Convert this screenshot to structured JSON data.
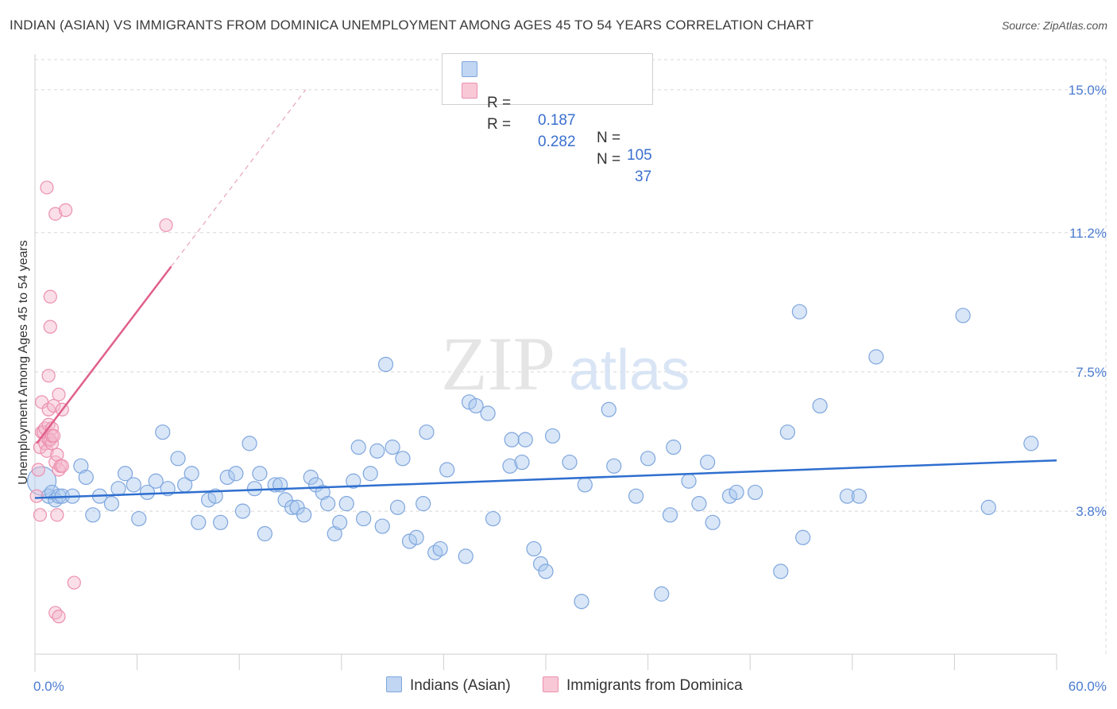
{
  "header": {
    "title": "INDIAN (ASIAN) VS IMMIGRANTS FROM DOMINICA UNEMPLOYMENT AMONG AGES 45 TO 54 YEARS CORRELATION CHART",
    "source": "Source: ZipAtlas.com"
  },
  "legend": {
    "r_label": "R =",
    "n_label": "N =",
    "series1": {
      "r": "0.187",
      "n": "105"
    },
    "series2": {
      "r": "0.282",
      "n": "37"
    }
  },
  "bottom_legend": {
    "series1": "Indians (Asian)",
    "series2": "Immigrants from Dominica"
  },
  "watermark": {
    "zip": "ZIP",
    "atlas": "atlas"
  },
  "colors": {
    "blue_fill": "#a9c7ee",
    "blue_stroke": "#7fa6de",
    "blue_line": "#2f6fcf",
    "pink_fill": "#f5b8cb",
    "pink_stroke": "#ec8fae",
    "pink_line": "#e0608a",
    "axis_text": "#4a7bd0",
    "grid": "#d8d8d8"
  },
  "chart_data": {
    "type": "scatter",
    "title": "INDIAN (ASIAN) VS IMMIGRANTS FROM DOMINICA UNEMPLOYMENT AMONG AGES 45 TO 54 YEARS CORRELATION CHART",
    "xlabel": "",
    "ylabel": "Unemployment Among Ages 45 to 54 years",
    "xlim": [
      0,
      60
    ],
    "ylim": [
      0,
      15.8
    ],
    "x_tick_labels": [
      "0.0%",
      "60.0%"
    ],
    "y_ticks": [
      {
        "value": 3.8,
        "label": "3.8%"
      },
      {
        "value": 7.5,
        "label": "7.5%"
      },
      {
        "value": 11.2,
        "label": "11.2%"
      },
      {
        "value": 15.0,
        "label": "15.0%"
      }
    ],
    "grid": true,
    "series": [
      {
        "name": "Indians (Asian)",
        "r": 0.187,
        "n": 105,
        "trend": {
          "x": [
            0,
            60
          ],
          "y": [
            4.15,
            5.15
          ]
        },
        "points": [
          [
            0.4,
            4.6
          ],
          [
            0.8,
            4.2
          ],
          [
            1.0,
            4.3
          ],
          [
            1.2,
            4.1
          ],
          [
            1.4,
            4.2
          ],
          [
            1.6,
            4.2
          ],
          [
            2.2,
            4.2
          ],
          [
            2.7,
            5.0
          ],
          [
            3.0,
            4.7
          ],
          [
            3.4,
            3.7
          ],
          [
            3.8,
            4.2
          ],
          [
            4.5,
            4.0
          ],
          [
            4.9,
            4.4
          ],
          [
            5.3,
            4.8
          ],
          [
            5.8,
            4.5
          ],
          [
            6.1,
            3.6
          ],
          [
            6.6,
            4.3
          ],
          [
            7.1,
            4.6
          ],
          [
            7.5,
            5.9
          ],
          [
            7.8,
            4.4
          ],
          [
            8.4,
            5.2
          ],
          [
            8.8,
            4.5
          ],
          [
            9.2,
            4.8
          ],
          [
            9.6,
            3.5
          ],
          [
            10.2,
            4.1
          ],
          [
            10.6,
            4.2
          ],
          [
            10.9,
            3.5
          ],
          [
            11.3,
            4.7
          ],
          [
            11.8,
            4.8
          ],
          [
            12.2,
            3.8
          ],
          [
            12.6,
            5.6
          ],
          [
            12.9,
            4.4
          ],
          [
            13.2,
            4.8
          ],
          [
            13.5,
            3.2
          ],
          [
            14.1,
            4.5
          ],
          [
            14.4,
            4.5
          ],
          [
            14.7,
            4.1
          ],
          [
            15.1,
            3.9
          ],
          [
            15.4,
            3.9
          ],
          [
            15.8,
            3.7
          ],
          [
            16.2,
            4.7
          ],
          [
            16.5,
            4.5
          ],
          [
            16.9,
            4.3
          ],
          [
            17.2,
            4.0
          ],
          [
            17.6,
            3.2
          ],
          [
            17.9,
            3.5
          ],
          [
            18.3,
            4.0
          ],
          [
            18.7,
            4.6
          ],
          [
            19.0,
            5.5
          ],
          [
            19.3,
            3.6
          ],
          [
            19.7,
            4.8
          ],
          [
            20.1,
            5.4
          ],
          [
            20.4,
            3.4
          ],
          [
            20.6,
            7.7
          ],
          [
            21.0,
            5.5
          ],
          [
            21.3,
            3.9
          ],
          [
            21.6,
            5.2
          ],
          [
            22.0,
            3.0
          ],
          [
            22.4,
            3.1
          ],
          [
            22.8,
            4.0
          ],
          [
            23.0,
            5.9
          ],
          [
            23.5,
            2.7
          ],
          [
            23.8,
            2.8
          ],
          [
            24.2,
            4.9
          ],
          [
            25.3,
            2.6
          ],
          [
            25.5,
            6.7
          ],
          [
            25.9,
            6.6
          ],
          [
            26.6,
            6.4
          ],
          [
            26.9,
            3.6
          ],
          [
            27.9,
            5.0
          ],
          [
            28.0,
            5.7
          ],
          [
            28.6,
            5.1
          ],
          [
            28.8,
            5.7
          ],
          [
            29.3,
            2.8
          ],
          [
            29.7,
            2.4
          ],
          [
            30.0,
            2.2
          ],
          [
            30.4,
            5.8
          ],
          [
            31.4,
            5.1
          ],
          [
            32.1,
            1.4
          ],
          [
            32.3,
            4.5
          ],
          [
            33.7,
            6.5
          ],
          [
            34.0,
            5.0
          ],
          [
            35.3,
            4.2
          ],
          [
            36.0,
            5.2
          ],
          [
            36.8,
            1.6
          ],
          [
            37.3,
            3.7
          ],
          [
            37.5,
            5.5
          ],
          [
            38.4,
            4.6
          ],
          [
            39.0,
            4.0
          ],
          [
            39.5,
            5.1
          ],
          [
            39.8,
            3.5
          ],
          [
            40.8,
            4.2
          ],
          [
            41.2,
            4.3
          ],
          [
            42.3,
            4.3
          ],
          [
            43.8,
            2.2
          ],
          [
            44.2,
            5.9
          ],
          [
            44.9,
            9.1
          ],
          [
            45.1,
            3.1
          ],
          [
            46.1,
            6.6
          ],
          [
            47.7,
            4.2
          ],
          [
            48.4,
            4.2
          ],
          [
            49.4,
            7.9
          ],
          [
            54.5,
            9.0
          ],
          [
            56.0,
            3.9
          ],
          [
            58.5,
            5.6
          ]
        ]
      },
      {
        "name": "Immigrants from Dominica",
        "r": 0.282,
        "n": 37,
        "trend": {
          "x": [
            0.1,
            8.0
          ],
          "y": [
            5.6,
            10.3
          ]
        },
        "trend_dashed": {
          "x": [
            8.0,
            15.9
          ],
          "y": [
            10.3,
            15.0
          ]
        },
        "points": [
          [
            0.1,
            4.2
          ],
          [
            0.2,
            4.9
          ],
          [
            0.3,
            3.7
          ],
          [
            0.3,
            5.5
          ],
          [
            0.4,
            6.7
          ],
          [
            0.4,
            5.9
          ],
          [
            0.5,
            5.9
          ],
          [
            0.6,
            6.0
          ],
          [
            0.6,
            5.6
          ],
          [
            0.7,
            5.4
          ],
          [
            0.7,
            12.4
          ],
          [
            0.8,
            6.1
          ],
          [
            0.8,
            6.5
          ],
          [
            0.8,
            5.7
          ],
          [
            0.8,
            7.4
          ],
          [
            0.9,
            5.7
          ],
          [
            0.9,
            9.5
          ],
          [
            0.9,
            8.7
          ],
          [
            1.0,
            6.0
          ],
          [
            1.0,
            5.6
          ],
          [
            1.0,
            5.8
          ],
          [
            1.1,
            6.6
          ],
          [
            1.1,
            5.8
          ],
          [
            1.2,
            5.1
          ],
          [
            1.2,
            11.7
          ],
          [
            1.3,
            5.3
          ],
          [
            1.4,
            4.9
          ],
          [
            1.4,
            6.9
          ],
          [
            1.5,
            5.0
          ],
          [
            1.6,
            6.5
          ],
          [
            1.6,
            5.0
          ],
          [
            1.8,
            11.8
          ],
          [
            2.3,
            1.9
          ],
          [
            1.2,
            1.1
          ],
          [
            1.4,
            1.0
          ],
          [
            7.7,
            11.4
          ],
          [
            1.3,
            3.7
          ]
        ]
      }
    ]
  }
}
